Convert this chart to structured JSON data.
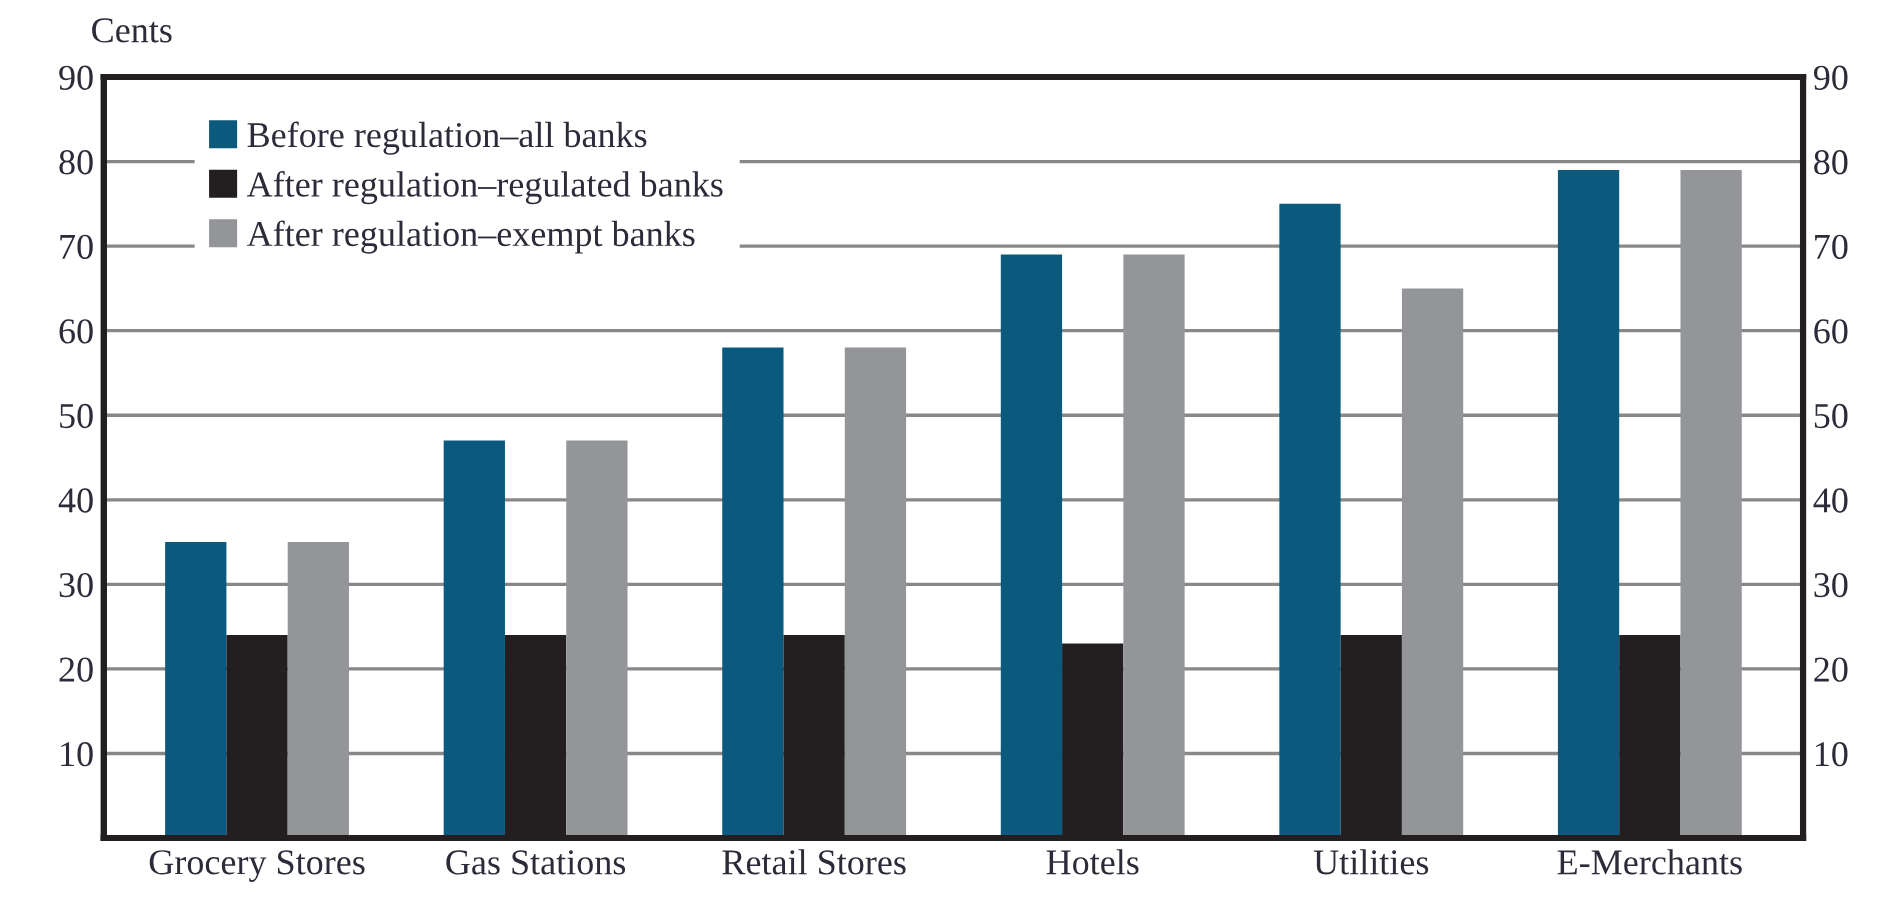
{
  "chart_data": {
    "type": "bar",
    "ylabel": "Cents",
    "categories": [
      "Grocery Stores",
      "Gas Stations",
      "Retail Stores",
      "Hotels",
      "Utilities",
      "E-Merchants"
    ],
    "series": [
      {
        "name": "Before regulation–all banks",
        "color": "#0b5a7d",
        "values": [
          35,
          47,
          58,
          69,
          75,
          79
        ]
      },
      {
        "name": "After regulation–regulated banks",
        "color": "#231f20",
        "values": [
          24,
          24,
          24,
          23,
          24,
          24
        ]
      },
      {
        "name": "After regulation–exempt banks",
        "color": "#939598",
        "values": [
          35,
          47,
          58,
          69,
          65,
          79
        ]
      }
    ],
    "ylim": [
      0,
      90
    ],
    "yticks": [
      10,
      20,
      30,
      40,
      50,
      60,
      70,
      80,
      90
    ],
    "y2lim": [
      0,
      90
    ],
    "y2ticks": [
      10,
      20,
      30,
      40,
      50,
      60,
      70,
      80,
      90
    ],
    "grid": "y",
    "legend": "top left"
  }
}
